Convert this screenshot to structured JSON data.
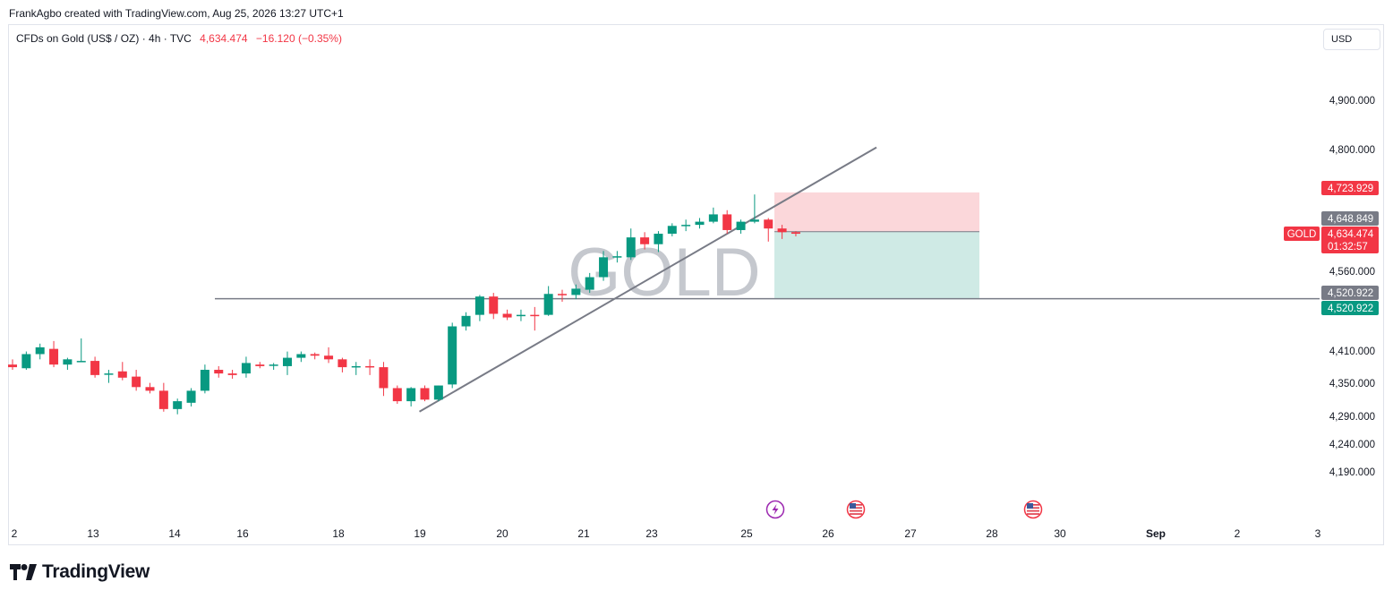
{
  "header": {
    "caption": "FrankAgbo created with TradingView.com, Aug 25, 2026 13:27 UTC+1"
  },
  "symbol_bar": {
    "name": "CFDs on Gold (US$ / OZ) · 4h · TVC",
    "price": "4,634.474",
    "change": "−16.120 (−0.35%)"
  },
  "currency": "USD",
  "watermark": "GOLD",
  "footer": {
    "brand": "TradingView"
  },
  "colors": {
    "up": "#089981",
    "down": "#f23645",
    "trendline": "#787b86",
    "stop_zone": "#fbd7da",
    "target_zone": "#cfeae5",
    "price_label": "#f23645",
    "gray_label": "#787b86",
    "green_label": "#089981"
  },
  "chart_data": {
    "type": "candlestick",
    "symbol": "GOLD",
    "timeframe": "4h",
    "x_tick_labels": [
      "2",
      "13",
      "14",
      "16",
      "18",
      "19",
      "20",
      "21",
      "23",
      "25",
      "26",
      "27",
      "28",
      "30",
      "Sep",
      "2",
      "3"
    ],
    "y_tick_labels": [
      "4,900.000",
      "4,800.000",
      "4,560.000",
      "4,410.000",
      "4,350.000",
      "4,290.000",
      "4,240.000",
      "4,190.000"
    ],
    "candles": [
      [
        4395,
        4405,
        4385,
        4390
      ],
      [
        4388,
        4420,
        4385,
        4415
      ],
      [
        4415,
        4435,
        4405,
        4428
      ],
      [
        4425,
        4440,
        4390,
        4395
      ],
      [
        4395,
        4408,
        4385,
        4405
      ],
      [
        4402,
        4445,
        4400,
        4402
      ],
      [
        4402,
        4410,
        4370,
        4375
      ],
      [
        4378,
        4385,
        4360,
        4378
      ],
      [
        4382,
        4400,
        4365,
        4370
      ],
      [
        4372,
        4385,
        4345,
        4352
      ],
      [
        4352,
        4360,
        4340,
        4345
      ],
      [
        4345,
        4360,
        4305,
        4310
      ],
      [
        4310,
        4330,
        4300,
        4325
      ],
      [
        4322,
        4350,
        4315,
        4345
      ],
      [
        4345,
        4395,
        4340,
        4385
      ],
      [
        4385,
        4392,
        4370,
        4378
      ],
      [
        4378,
        4385,
        4368,
        4375
      ],
      [
        4378,
        4410,
        4370,
        4398
      ],
      [
        4395,
        4400,
        4388,
        4392
      ],
      [
        4394,
        4398,
        4385,
        4395
      ],
      [
        4392,
        4420,
        4375,
        4408
      ],
      [
        4408,
        4420,
        4400,
        4415
      ],
      [
        4415,
        4418,
        4405,
        4412
      ],
      [
        4412,
        4428,
        4398,
        4405
      ],
      [
        4405,
        4408,
        4380,
        4390
      ],
      [
        4390,
        4400,
        4375,
        4392
      ],
      [
        4392,
        4405,
        4375,
        4390
      ],
      [
        4390,
        4400,
        4335,
        4350
      ],
      [
        4350,
        4355,
        4320,
        4325
      ],
      [
        4325,
        4352,
        4315,
        4350
      ],
      [
        4350,
        4355,
        4325,
        4328
      ],
      [
        4328,
        4355,
        4325,
        4355
      ],
      [
        4357,
        4475,
        4350,
        4468
      ],
      [
        4468,
        4495,
        4460,
        4488
      ],
      [
        4490,
        4528,
        4478,
        4525
      ],
      [
        4525,
        4532,
        4482,
        4492
      ],
      [
        4492,
        4500,
        4480,
        4485
      ],
      [
        4488,
        4500,
        4478,
        4490
      ],
      [
        4490,
        4505,
        4460,
        4488
      ],
      [
        4490,
        4545,
        4488,
        4530
      ],
      [
        4530,
        4538,
        4515,
        4528
      ],
      [
        4528,
        4548,
        4520,
        4540
      ],
      [
        4538,
        4570,
        4532,
        4562
      ],
      [
        4562,
        4612,
        4555,
        4600
      ],
      [
        4600,
        4612,
        4590,
        4602
      ],
      [
        4600,
        4655,
        4595,
        4638
      ],
      [
        4638,
        4648,
        4615,
        4625
      ],
      [
        4625,
        4650,
        4610,
        4645
      ],
      [
        4645,
        4665,
        4640,
        4660
      ],
      [
        4660,
        4672,
        4650,
        4662
      ],
      [
        4662,
        4675,
        4655,
        4668
      ],
      [
        4668,
        4695,
        4665,
        4682
      ],
      [
        4682,
        4690,
        4645,
        4652
      ],
      [
        4652,
        4672,
        4645,
        4668
      ],
      [
        4668,
        4720,
        4665,
        4672
      ],
      [
        4672,
        4675,
        4630,
        4655
      ],
      [
        4655,
        4662,
        4635,
        4648
      ],
      [
        4648,
        4650,
        4640,
        4645
      ]
    ],
    "current_price": 4634.474,
    "trendline": {
      "from": [
        30,
        4305
      ],
      "to": [
        63,
        4810
      ]
    },
    "horizontal_line": 4520.922,
    "position": {
      "entry": 4648.849,
      "stop": 4723.929,
      "target": 4520.922
    },
    "price_labels": [
      {
        "text": "4,723.929",
        "style": "red"
      },
      {
        "text": "4,648.849",
        "style": "gray"
      },
      {
        "text": "4,634.474",
        "style": "red",
        "extra": "01:32:57",
        "tag": "GOLD"
      },
      {
        "text": "4,520.922",
        "style": "gray"
      },
      {
        "text": "4,520.922",
        "style": "green"
      }
    ],
    "event_markers": [
      {
        "kind": "lightning-icon",
        "color": "#9c27b0"
      },
      {
        "kind": "us-flag-icon",
        "color": "#f23645"
      },
      {
        "kind": "us-flag-icon",
        "color": "#f23645"
      }
    ]
  }
}
